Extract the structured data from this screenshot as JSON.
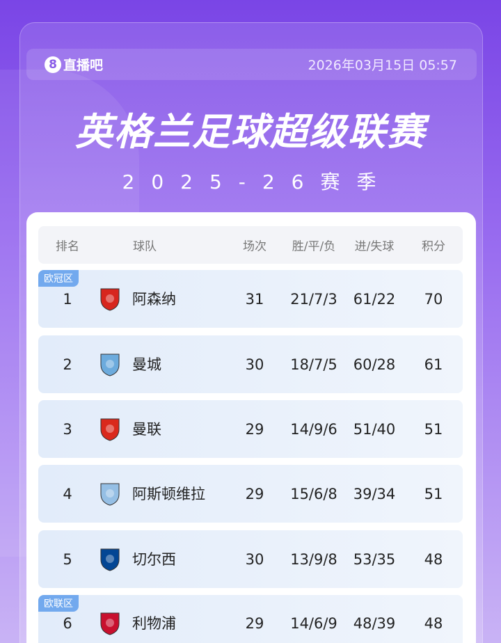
{
  "header": {
    "brand": "直播吧",
    "brand_icon": "8",
    "datetime": "2026年03月15日 05:57"
  },
  "title": "英格兰足球超级联赛",
  "season": "2025-26赛季",
  "table": {
    "columns": [
      "排名",
      "球队",
      "场次",
      "胜/平/负",
      "进/失球",
      "积分"
    ],
    "rows": [
      {
        "zone": "欧冠区",
        "rank": "1",
        "team": "阿森纳",
        "crest": "arsenal-crest-icon",
        "color": "#d7261e",
        "played": "31",
        "wdl": "21/7/3",
        "goals": "61/22",
        "points": "70"
      },
      {
        "zone": "",
        "rank": "2",
        "team": "曼城",
        "crest": "man-city-crest-icon",
        "color": "#6cabdd",
        "played": "30",
        "wdl": "18/7/5",
        "goals": "60/28",
        "points": "61"
      },
      {
        "zone": "",
        "rank": "3",
        "team": "曼联",
        "crest": "man-utd-crest-icon",
        "color": "#da291c",
        "played": "29",
        "wdl": "14/9/6",
        "goals": "51/40",
        "points": "51"
      },
      {
        "zone": "",
        "rank": "4",
        "team": "阿斯顿维拉",
        "crest": "aston-villa-crest-icon",
        "color": "#95bfe5",
        "played": "29",
        "wdl": "15/6/8",
        "goals": "39/34",
        "points": "51"
      },
      {
        "zone": "",
        "rank": "5",
        "team": "切尔西",
        "crest": "chelsea-crest-icon",
        "color": "#034694",
        "played": "30",
        "wdl": "13/9/8",
        "goals": "53/35",
        "points": "48"
      },
      {
        "zone": "欧联区",
        "rank": "6",
        "team": "利物浦",
        "crest": "liverpool-crest-icon",
        "color": "#c8102e",
        "played": "29",
        "wdl": "14/6/9",
        "goals": "48/39",
        "points": "48"
      }
    ]
  }
}
